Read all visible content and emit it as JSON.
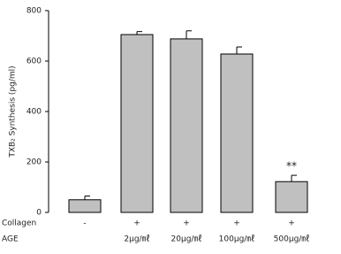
{
  "chart_data": {
    "type": "bar",
    "y_label": "TXB₂ Synthesis (pg/ml)",
    "values": [
      50,
      705,
      688,
      628,
      122
    ],
    "errors": [
      15,
      12,
      32,
      28,
      25
    ],
    "value_annotations": [
      null,
      null,
      null,
      null,
      "**"
    ],
    "category_rows": [
      {
        "name": "Collagen",
        "labels": [
          "-",
          "+",
          "+",
          "+",
          "+"
        ]
      },
      {
        "name": "AGE",
        "labels": [
          null,
          "2μg/㎖",
          "20μg/㎖",
          "100μg/㎖",
          "500μg/㎖"
        ]
      }
    ],
    "color": "#c0c0c0",
    "ylim": [
      0,
      800
    ],
    "yticks": [
      0,
      200,
      400,
      600,
      800
    ],
    "grid": false
  }
}
